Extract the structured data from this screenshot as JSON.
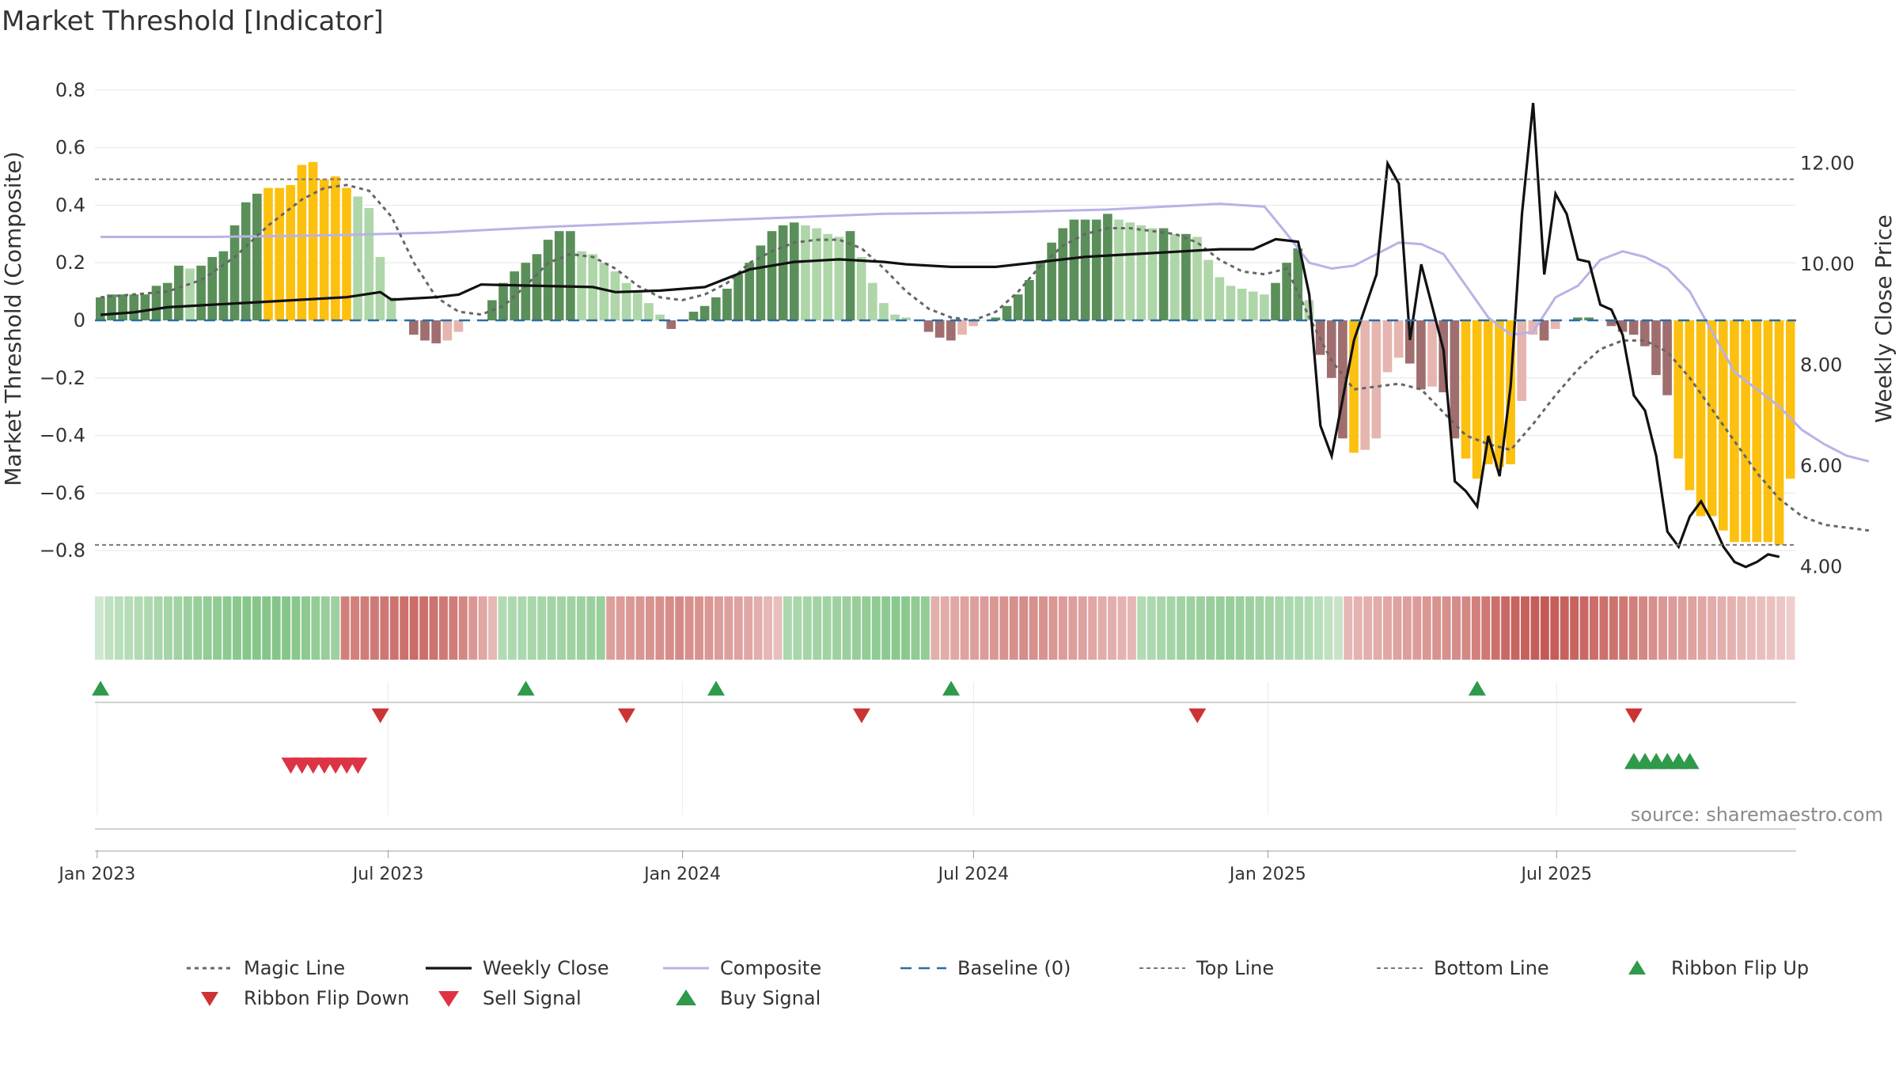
{
  "chart_data": {
    "type": "bar",
    "title": "Market Threshold [Indicator]",
    "ylabel": "Market Threshold (Composite)",
    "y2label": "Weekly Close Price",
    "ylim": [
      -0.86,
      0.86
    ],
    "y2lim": [
      3.98,
      13.8
    ],
    "yticks": [
      {
        "v": 0.8,
        "label": "0.8"
      },
      {
        "v": 0.6,
        "label": "0.6"
      },
      {
        "v": 0.4,
        "label": "0.4"
      },
      {
        "v": 0.2,
        "label": "0.2"
      },
      {
        "v": 0,
        "label": "0"
      },
      {
        "v": -0.2,
        "label": "−0.2"
      },
      {
        "v": -0.4,
        "label": "−0.4"
      },
      {
        "v": -0.6,
        "label": "−0.6"
      },
      {
        "v": -0.8,
        "label": "−0.8"
      }
    ],
    "y2ticks": [
      {
        "v": 12,
        "label": "12.00"
      },
      {
        "v": 10,
        "label": "10.00"
      },
      {
        "v": 8,
        "label": "8.00"
      },
      {
        "v": 6,
        "label": "6.00"
      },
      {
        "v": 4,
        "label": "4.00"
      }
    ],
    "xticks": [
      {
        "week": 0,
        "label": "Jan 2023"
      },
      {
        "week": 26,
        "label": "Jul 2023"
      },
      {
        "week": 52.3,
        "label": "Jan 2024"
      },
      {
        "week": 78.3,
        "label": "Jul 2024"
      },
      {
        "week": 104.6,
        "label": "Jan 2025"
      },
      {
        "week": 130.4,
        "label": "Jul 2025"
      }
    ],
    "top_line": 0.49,
    "bottom_line": -0.78,
    "baseline": 0,
    "composite_bars": [
      0.08,
      0.09,
      0.09,
      0.09,
      0.09,
      0.12,
      0.13,
      0.19,
      0.18,
      0.19,
      0.22,
      0.24,
      0.33,
      0.41,
      0.44,
      0.46,
      0.46,
      0.47,
      0.54,
      0.55,
      0.49,
      0.5,
      0.46,
      0.43,
      0.39,
      0.22,
      0.08,
      0,
      -0.05,
      -0.07,
      -0.08,
      -0.07,
      -0.04,
      0,
      0,
      0.07,
      0.13,
      0.17,
      0.2,
      0.23,
      0.28,
      0.31,
      0.31,
      0.24,
      0.23,
      0.2,
      0.17,
      0.13,
      0.1,
      0.06,
      0.02,
      -0.03,
      0,
      0.03,
      0.05,
      0.08,
      0.11,
      0.16,
      0.2,
      0.26,
      0.31,
      0.33,
      0.34,
      0.33,
      0.32,
      0.3,
      0.29,
      0.31,
      0.22,
      0.13,
      0.06,
      0.02,
      0.01,
      0,
      -0.04,
      -0.06,
      -0.07,
      -0.05,
      -0.02,
      0,
      0.01,
      0.05,
      0.09,
      0.14,
      0.2,
      0.27,
      0.32,
      0.35,
      0.35,
      0.35,
      0.37,
      0.35,
      0.34,
      0.33,
      0.32,
      0.32,
      0.3,
      0.3,
      0.29,
      0.21,
      0.15,
      0.12,
      0.11,
      0.1,
      0.09,
      0.13,
      0.2,
      0.25,
      0.07,
      -0.12,
      -0.2,
      -0.41,
      -0.46,
      -0.45,
      -0.41,
      -0.18,
      -0.13,
      -0.15,
      -0.24,
      -0.23,
      -0.25,
      -0.41,
      -0.48,
      -0.55,
      -0.5,
      -0.51,
      -0.5,
      -0.28,
      -0.05,
      -0.07,
      -0.03,
      0,
      0.01,
      0.01,
      0,
      -0.02,
      -0.04,
      -0.05,
      -0.09,
      -0.19,
      -0.26,
      -0.48,
      -0.59,
      -0.68,
      -0.68,
      -0.73,
      -0.77,
      -0.77,
      -0.77,
      -0.77,
      -0.78,
      -0.55
    ],
    "bar_colors": {
      "bull_strong": "#5a8f5a",
      "bull_weak": "#aed6a8",
      "bear_strong": "#a06e6e",
      "bear_weak": "#e6b5b0",
      "extreme": "#fcc00e"
    },
    "ribbon": [
      0.15,
      0.25,
      0.3,
      0.32,
      0.35,
      0.38,
      0.42,
      0.45,
      0.48,
      0.52,
      0.55,
      0.58,
      0.6,
      0.62,
      0.64,
      0.66,
      0.67,
      0.68,
      0.68,
      0.67,
      0.65,
      0.62,
      0.58,
      0.55,
      0.5,
      -0.6,
      -0.6,
      -0.62,
      -0.64,
      -0.66,
      -0.68,
      -0.7,
      -0.72,
      -0.7,
      -0.68,
      -0.65,
      -0.62,
      -0.55,
      -0.45,
      -0.35,
      -0.25,
      0.35,
      0.38,
      0.4,
      0.42,
      0.44,
      0.46,
      0.47,
      0.48,
      0.5,
      0.52,
      0.53,
      -0.4,
      -0.42,
      -0.44,
      -0.46,
      -0.48,
      -0.5,
      -0.52,
      -0.54,
      -0.5,
      -0.48,
      -0.45,
      -0.42,
      -0.4,
      -0.38,
      -0.35,
      -0.3,
      -0.25,
      -0.2,
      0.4,
      0.42,
      0.45,
      0.47,
      0.48,
      0.5,
      0.52,
      0.55,
      0.58,
      0.6,
      0.62,
      0.64,
      0.63,
      0.6,
      0.58,
      -0.3,
      -0.32,
      -0.35,
      -0.38,
      -0.4,
      -0.42,
      -0.45,
      -0.48,
      -0.5,
      -0.52,
      -0.5,
      -0.48,
      -0.45,
      -0.42,
      -0.4,
      -0.38,
      -0.35,
      -0.32,
      -0.3,
      -0.28,
      -0.25,
      0.35,
      0.38,
      0.42,
      0.45,
      0.48,
      0.5,
      0.52,
      0.55,
      0.55,
      0.55,
      0.53,
      0.5,
      0.48,
      0.45,
      0.42,
      0.4,
      0.38,
      0.35,
      0.3,
      0.25,
      0.2,
      -0.25,
      -0.28,
      -0.3,
      -0.32,
      -0.35,
      -0.38,
      -0.4,
      -0.42,
      -0.45,
      -0.48,
      -0.5,
      -0.52,
      -0.55,
      -0.6,
      -0.65,
      -0.7,
      -0.75,
      -0.78,
      -0.8,
      -0.82,
      -0.85,
      -0.82,
      -0.8,
      -0.78,
      -0.75,
      -0.72,
      -0.7,
      -0.68,
      -0.65,
      -0.6,
      -0.55,
      -0.5,
      -0.45,
      -0.42,
      -0.4,
      -0.38,
      -0.35,
      -0.32,
      -0.3,
      -0.28,
      -0.25,
      -0.22,
      -0.2,
      -0.18,
      -0.15,
      -0.1
    ],
    "ribbon_colors": {
      "bull": "#6fbb73",
      "bear": "#c45a55"
    },
    "composite_line": [
      [
        0,
        0.29
      ],
      [
        10,
        0.29
      ],
      [
        20,
        0.295
      ],
      [
        30,
        0.305
      ],
      [
        40,
        0.325
      ],
      [
        50,
        0.34
      ],
      [
        60,
        0.355
      ],
      [
        70,
        0.37
      ],
      [
        80,
        0.375
      ],
      [
        90,
        0.385
      ],
      [
        100,
        0.405
      ],
      [
        104,
        0.395
      ],
      [
        106,
        0.3
      ],
      [
        108,
        0.2
      ],
      [
        110,
        0.18
      ],
      [
        112,
        0.19
      ],
      [
        114,
        0.23
      ],
      [
        116,
        0.27
      ],
      [
        118,
        0.265
      ],
      [
        120,
        0.23
      ],
      [
        122,
        0.12
      ],
      [
        124,
        0.01
      ],
      [
        126,
        -0.05
      ],
      [
        128,
        -0.04
      ],
      [
        130,
        0.08
      ],
      [
        132,
        0.12
      ],
      [
        134,
        0.21
      ],
      [
        136,
        0.24
      ],
      [
        138,
        0.22
      ],
      [
        140,
        0.18
      ],
      [
        142,
        0.1
      ],
      [
        144,
        -0.04
      ],
      [
        146,
        -0.18
      ],
      [
        148,
        -0.24
      ],
      [
        150,
        -0.3
      ],
      [
        152,
        -0.38
      ],
      [
        154,
        -0.43
      ],
      [
        156,
        -0.47
      ],
      [
        158,
        -0.49
      ]
    ],
    "magic_line": [
      [
        0,
        0.08
      ],
      [
        3,
        0.09
      ],
      [
        6,
        0.1
      ],
      [
        9,
        0.14
      ],
      [
        12,
        0.22
      ],
      [
        15,
        0.33
      ],
      [
        18,
        0.42
      ],
      [
        20,
        0.46
      ],
      [
        22,
        0.47
      ],
      [
        24,
        0.45
      ],
      [
        26,
        0.36
      ],
      [
        28,
        0.2
      ],
      [
        30,
        0.08
      ],
      [
        32,
        0.03
      ],
      [
        34,
        0.02
      ],
      [
        36,
        0.05
      ],
      [
        38,
        0.12
      ],
      [
        40,
        0.2
      ],
      [
        42,
        0.23
      ],
      [
        44,
        0.22
      ],
      [
        46,
        0.18
      ],
      [
        48,
        0.12
      ],
      [
        50,
        0.08
      ],
      [
        52,
        0.07
      ],
      [
        54,
        0.09
      ],
      [
        56,
        0.13
      ],
      [
        58,
        0.2
      ],
      [
        60,
        0.24
      ],
      [
        62,
        0.27
      ],
      [
        64,
        0.28
      ],
      [
        66,
        0.28
      ],
      [
        68,
        0.25
      ],
      [
        70,
        0.18
      ],
      [
        72,
        0.1
      ],
      [
        74,
        0.04
      ],
      [
        76,
        0.01
      ],
      [
        78,
        0
      ],
      [
        80,
        0.03
      ],
      [
        82,
        0.1
      ],
      [
        84,
        0.19
      ],
      [
        86,
        0.26
      ],
      [
        88,
        0.3
      ],
      [
        90,
        0.32
      ],
      [
        92,
        0.32
      ],
      [
        94,
        0.31
      ],
      [
        96,
        0.3
      ],
      [
        98,
        0.27
      ],
      [
        100,
        0.21
      ],
      [
        102,
        0.17
      ],
      [
        104,
        0.16
      ],
      [
        106,
        0.18
      ],
      [
        108,
        0.01
      ],
      [
        110,
        -0.14
      ],
      [
        112,
        -0.24
      ],
      [
        114,
        -0.23
      ],
      [
        116,
        -0.22
      ],
      [
        118,
        -0.24
      ],
      [
        120,
        -0.32
      ],
      [
        122,
        -0.4
      ],
      [
        124,
        -0.43
      ],
      [
        126,
        -0.45
      ],
      [
        128,
        -0.36
      ],
      [
        130,
        -0.26
      ],
      [
        132,
        -0.17
      ],
      [
        134,
        -0.1
      ],
      [
        136,
        -0.07
      ],
      [
        138,
        -0.07
      ],
      [
        140,
        -0.11
      ],
      [
        142,
        -0.2
      ],
      [
        144,
        -0.31
      ],
      [
        146,
        -0.42
      ],
      [
        148,
        -0.53
      ],
      [
        150,
        -0.62
      ],
      [
        152,
        -0.68
      ],
      [
        154,
        -0.71
      ],
      [
        156,
        -0.72
      ],
      [
        158,
        -0.73
      ]
    ],
    "weekly_close": [
      [
        0,
        9.0
      ],
      [
        3,
        9.05
      ],
      [
        6,
        9.15
      ],
      [
        10,
        9.2
      ],
      [
        14,
        9.25
      ],
      [
        18,
        9.3
      ],
      [
        22,
        9.35
      ],
      [
        25,
        9.45
      ],
      [
        26,
        9.3
      ],
      [
        30,
        9.35
      ],
      [
        32,
        9.4
      ],
      [
        34,
        9.6
      ],
      [
        38,
        9.58
      ],
      [
        44,
        9.55
      ],
      [
        46,
        9.45
      ],
      [
        50,
        9.48
      ],
      [
        54,
        9.55
      ],
      [
        58,
        9.9
      ],
      [
        62,
        10.05
      ],
      [
        66,
        10.1
      ],
      [
        70,
        10.05
      ],
      [
        72,
        10.0
      ],
      [
        76,
        9.95
      ],
      [
        80,
        9.95
      ],
      [
        84,
        10.05
      ],
      [
        88,
        10.15
      ],
      [
        92,
        10.2
      ],
      [
        96,
        10.25
      ],
      [
        100,
        10.3
      ],
      [
        103,
        10.3
      ],
      [
        105,
        10.5
      ],
      [
        107,
        10.45
      ],
      [
        108,
        9.4
      ],
      [
        109,
        6.8
      ],
      [
        110,
        6.2
      ],
      [
        112,
        8.5
      ],
      [
        114,
        9.8
      ],
      [
        115,
        12.0
      ],
      [
        116,
        11.6
      ],
      [
        117,
        8.5
      ],
      [
        118,
        10.0
      ],
      [
        120,
        8.3
      ],
      [
        121,
        5.7
      ],
      [
        122,
        5.5
      ],
      [
        123,
        5.2
      ],
      [
        124,
        6.6
      ],
      [
        125,
        5.8
      ],
      [
        126,
        7.6
      ],
      [
        127,
        11.0
      ],
      [
        128,
        13.2
      ],
      [
        129,
        9.8
      ],
      [
        130,
        11.4
      ],
      [
        131,
        11.0
      ],
      [
        132,
        10.1
      ],
      [
        133,
        10.05
      ],
      [
        134,
        9.2
      ],
      [
        135,
        9.1
      ],
      [
        136,
        8.6
      ],
      [
        137,
        7.4
      ],
      [
        138,
        7.1
      ],
      [
        139,
        6.2
      ],
      [
        140,
        4.7
      ],
      [
        141,
        4.4
      ],
      [
        142,
        5.0
      ],
      [
        143,
        5.3
      ],
      [
        144,
        4.9
      ],
      [
        145,
        4.4
      ],
      [
        146,
        4.1
      ],
      [
        147,
        4.0
      ],
      [
        148,
        4.1
      ],
      [
        149,
        4.25
      ],
      [
        150,
        4.2
      ]
    ],
    "ribbon_flip_up": [
      0,
      38,
      55,
      76,
      123
    ],
    "ribbon_flip_down": [
      25,
      47,
      68,
      98,
      137
    ],
    "buy_signals": [
      137,
      138,
      139,
      140,
      141,
      142
    ],
    "sell_signals": [
      17,
      18,
      19,
      20,
      21,
      22,
      23
    ],
    "legend": [
      {
        "key": "magic",
        "label": "Magic Line"
      },
      {
        "key": "close",
        "label": "Weekly Close"
      },
      {
        "key": "composite",
        "label": "Composite"
      },
      {
        "key": "baseline",
        "label": "Baseline (0)"
      },
      {
        "key": "top",
        "label": "Top Line"
      },
      {
        "key": "bottom",
        "label": "Bottom Line"
      },
      {
        "key": "flipup",
        "label": "Ribbon Flip Up"
      },
      {
        "key": "flipdown",
        "label": "Ribbon Flip Down"
      },
      {
        "key": "sell",
        "label": "Sell Signal"
      },
      {
        "key": "buy",
        "label": "Buy Signal"
      }
    ],
    "source": "source: sharemaestro.com",
    "colors": {
      "magic": "#666666",
      "close": "#111111",
      "composite": "#b9b2e6",
      "baseline": "#2b6ea3",
      "refline": "#777777",
      "flipup": "#2e9a4a",
      "flipdown": "#cc3333",
      "sell": "#dd3344",
      "buy": "#2e9a4a"
    }
  }
}
